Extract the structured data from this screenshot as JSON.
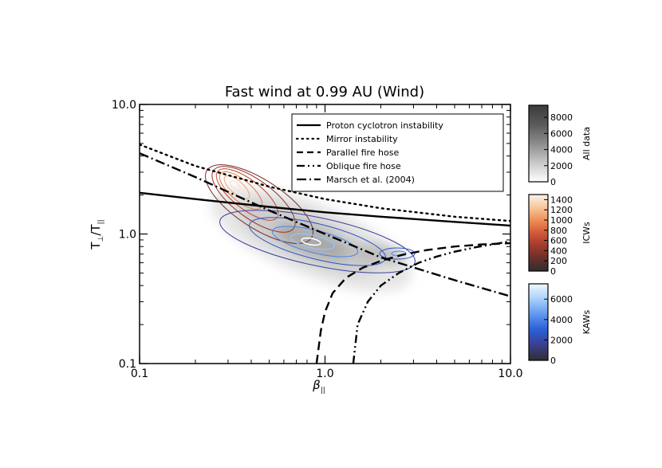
{
  "chart_data": {
    "type": "line",
    "title": "Fast wind at 0.99 AU (Wind)",
    "xlabel": "β",
    "xlabel_sub": "||",
    "ylabel": "T",
    "ylabel_parts": [
      "T",
      "⊥",
      "/T",
      "||"
    ],
    "x_scale": "log",
    "y_scale": "log",
    "xlim": [
      0.1,
      10.0
    ],
    "ylim": [
      0.1,
      10.0
    ],
    "x_ticks": [
      0.1,
      1.0,
      10.0
    ],
    "y_ticks": [
      0.1,
      1.0,
      10.0
    ],
    "x_tick_labels": [
      "0.1",
      "1.0",
      "10.0"
    ],
    "y_tick_labels": [
      "0.1",
      "1.0",
      "10.0"
    ],
    "legend_position": "top-right",
    "series": [
      {
        "name": "Proton cyclotron instability",
        "style": "solid",
        "x": [
          0.1,
          0.2,
          0.5,
          1.0,
          2.0,
          5.0,
          10.0
        ],
        "y": [
          2.08,
          1.86,
          1.62,
          1.47,
          1.36,
          1.24,
          1.16
        ]
      },
      {
        "name": "Mirror instability",
        "style": "dotted",
        "x": [
          0.1,
          0.2,
          0.5,
          1.0,
          2.0,
          5.0,
          10.0
        ],
        "y": [
          4.9,
          3.35,
          2.32,
          1.86,
          1.58,
          1.36,
          1.26
        ]
      },
      {
        "name": "Parallel fire hose",
        "style": "dashed",
        "x": [
          0.9,
          0.95,
          1.0,
          1.1,
          1.3,
          1.6,
          2.0,
          2.6,
          3.5,
          5.0,
          7.0,
          10.0
        ],
        "y": [
          0.1,
          0.18,
          0.25,
          0.35,
          0.46,
          0.55,
          0.62,
          0.69,
          0.75,
          0.8,
          0.83,
          0.85
        ]
      },
      {
        "name": "Oblique fire hose",
        "style": "dash-dot-dot",
        "x": [
          1.42,
          1.5,
          1.7,
          2.0,
          2.5,
          3.2,
          4.0,
          5.0,
          6.5,
          8.0,
          10.0
        ],
        "y": [
          0.1,
          0.2,
          0.3,
          0.4,
          0.5,
          0.6,
          0.67,
          0.73,
          0.79,
          0.83,
          0.88
        ]
      },
      {
        "name": "Marsch et al. (2004)",
        "style": "dash-dot",
        "x": [
          0.1,
          0.2,
          0.5,
          1.0,
          2.0,
          5.0,
          10.0
        ],
        "y": [
          4.2,
          2.75,
          1.52,
          1.0,
          0.66,
          0.44,
          0.33
        ]
      }
    ],
    "colorbars": [
      {
        "label": "All data",
        "ticks": [
          "0",
          "2000",
          "4000",
          "6000",
          "8000"
        ],
        "max": 9500,
        "colors": [
          "#ffffff",
          "#c8c8c8",
          "#8c8c8c",
          "#5a5a5a",
          "#3a3a3a"
        ]
      },
      {
        "label": "ICWs",
        "ticks": [
          "0",
          "200",
          "400",
          "600",
          "800",
          "1000",
          "1200",
          "1400"
        ],
        "max": 1500,
        "colors": [
          "#2e2e2e",
          "#6a2f2a",
          "#a23a2e",
          "#d05a38",
          "#ee8f56",
          "#f8c79c",
          "#fbf2ea"
        ]
      },
      {
        "label": "KAWs",
        "ticks": [
          "0",
          "2000",
          "4000",
          "6000"
        ],
        "max": 7500,
        "colors": [
          "#2f2f2f",
          "#3a3f8e",
          "#2a5fd6",
          "#5f97ee",
          "#a9d0fa",
          "#eef8ff"
        ]
      }
    ]
  }
}
